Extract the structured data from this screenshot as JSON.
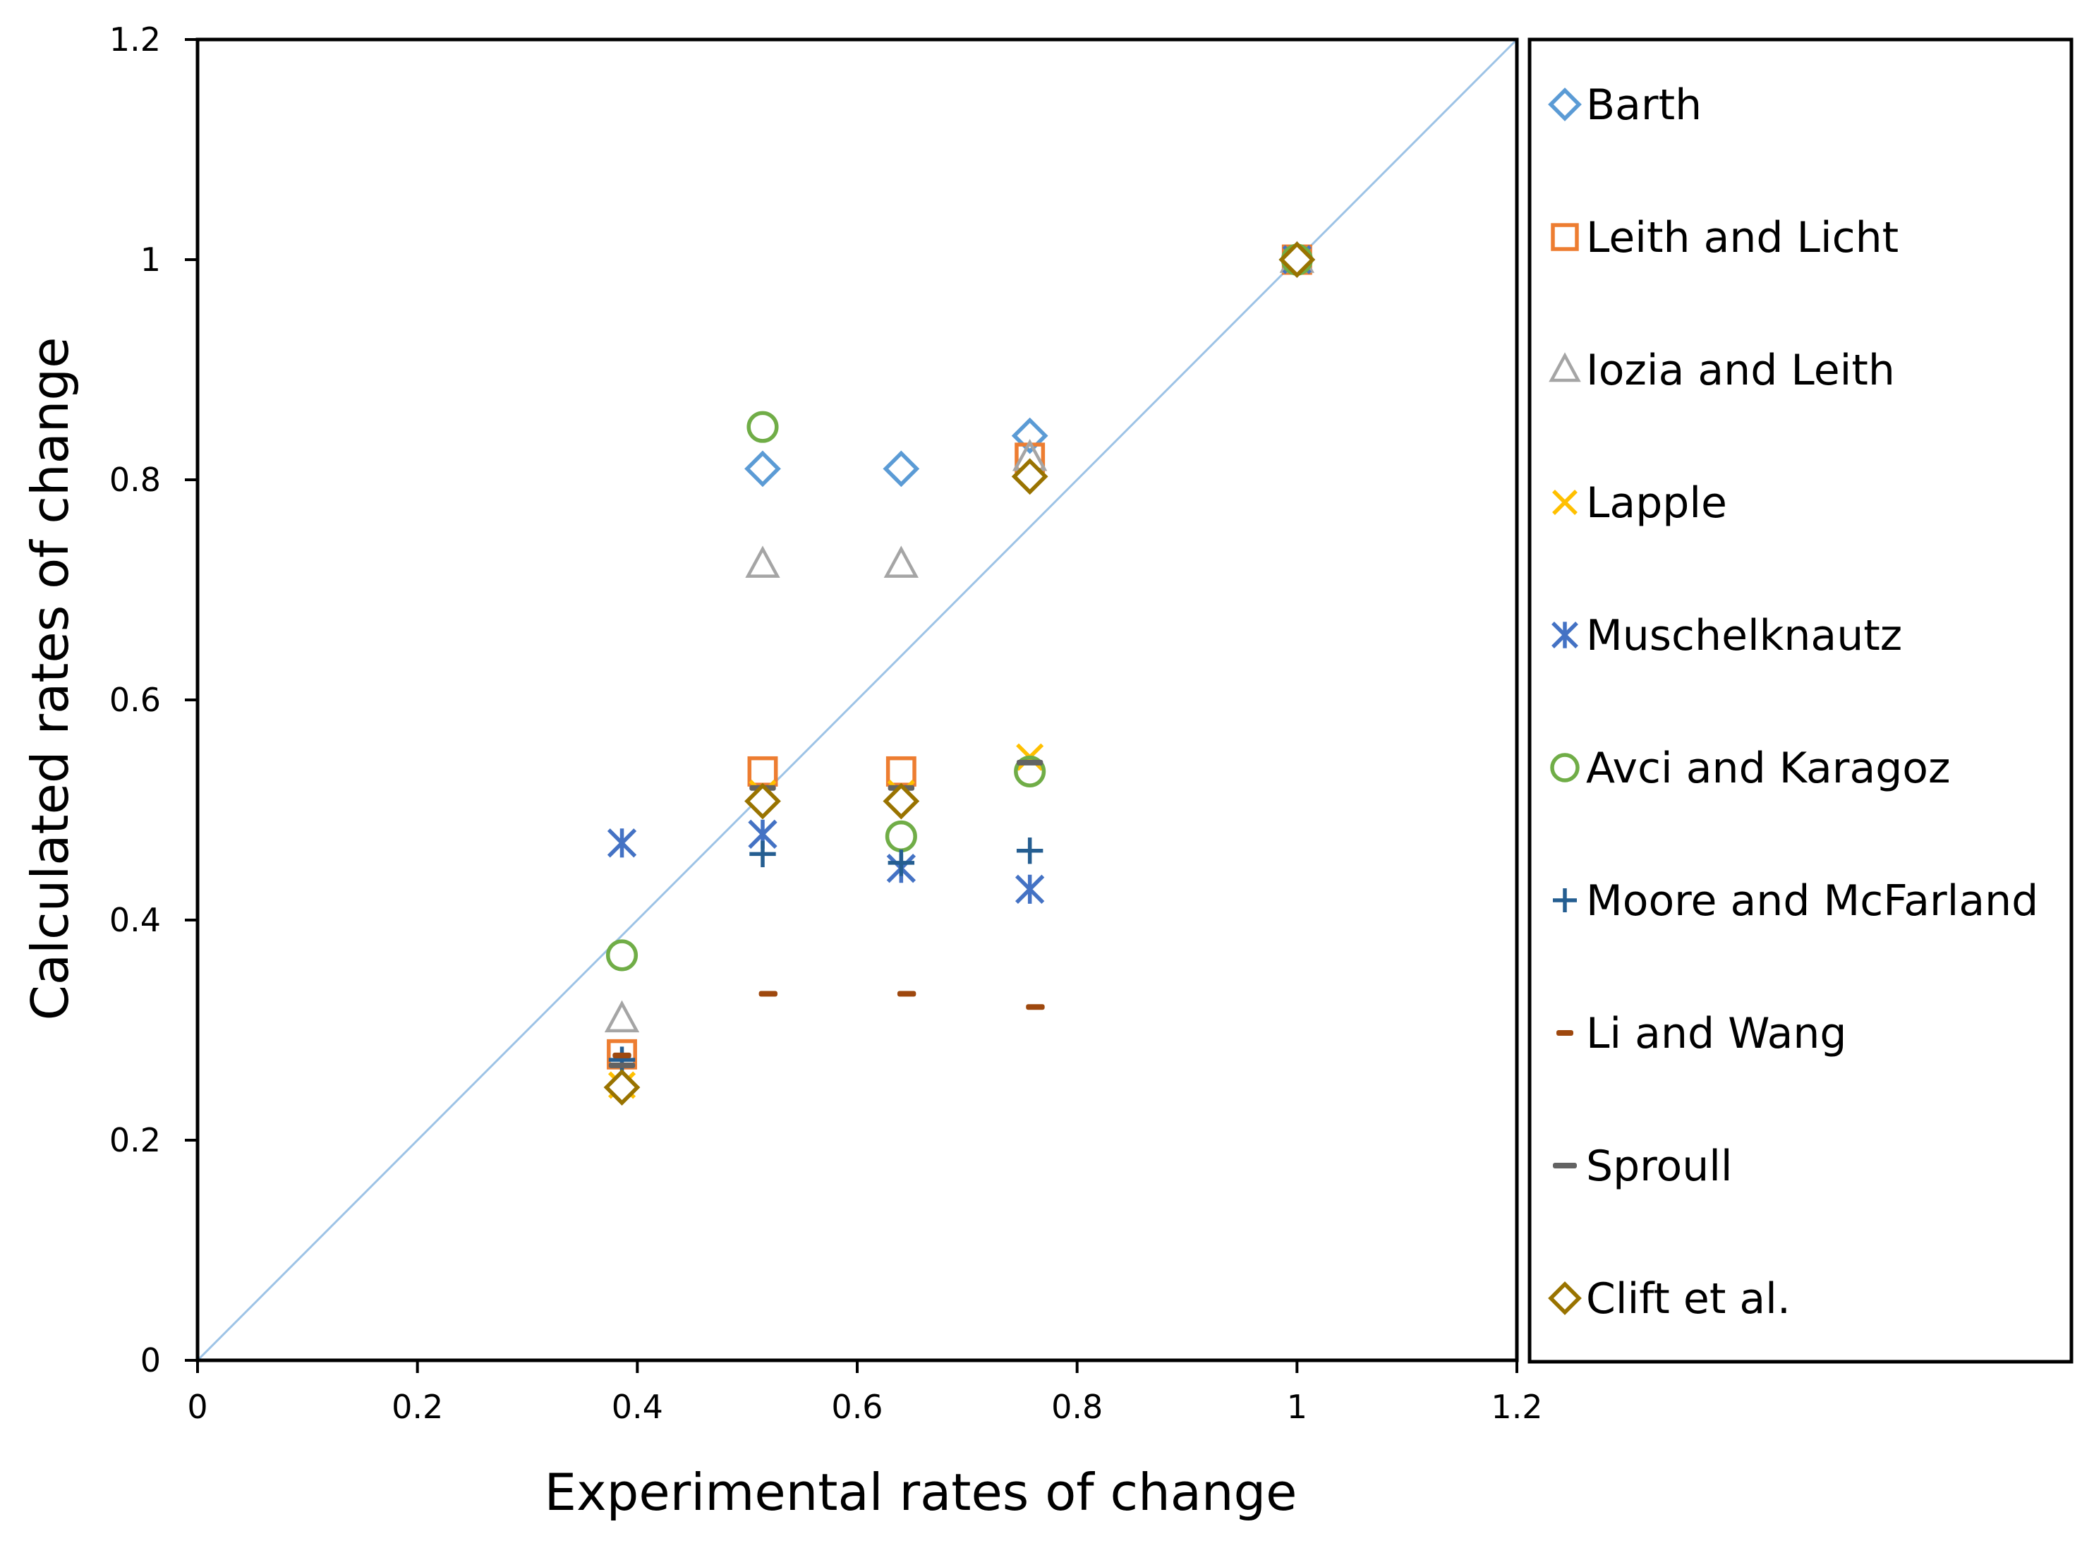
{
  "chart_data": {
    "type": "scatter",
    "title": "",
    "xlabel": "Experimental rates of change",
    "ylabel": "Calculated rates of change",
    "xlim": [
      0,
      1.2
    ],
    "ylim": [
      0,
      1.2
    ],
    "x_ticks": [
      "0",
      "0.2",
      "0.4",
      "0.6",
      "0.8",
      "1",
      "1.2"
    ],
    "y_ticks": [
      "0",
      "0.2",
      "0.4",
      "0.6",
      "0.8",
      "1",
      "1.2"
    ],
    "grid": false,
    "legend_position": "right",
    "reference_line": {
      "from": [
        0,
        0
      ],
      "to": [
        1.2,
        1.2
      ],
      "color": "#9DC3E6"
    },
    "series": [
      {
        "name": "Barth",
        "marker": "diamond-open",
        "color": "#5B9BD5",
        "points": [
          [
            0.514,
            0.81
          ],
          [
            0.64,
            0.81
          ],
          [
            0.757,
            0.84
          ],
          [
            1.0,
            1.0
          ]
        ]
      },
      {
        "name": "Leith and Licht",
        "marker": "square-open",
        "color": "#ED7D31",
        "points": [
          [
            0.386,
            0.278
          ],
          [
            0.514,
            0.535
          ],
          [
            0.64,
            0.535
          ],
          [
            0.757,
            0.82
          ],
          [
            1.0,
            1.0
          ]
        ]
      },
      {
        "name": "Iozia and Leith",
        "marker": "triangle-open",
        "color": "#A5A5A5",
        "points": [
          [
            0.386,
            0.31
          ],
          [
            0.514,
            0.723
          ],
          [
            0.64,
            0.723
          ],
          [
            0.757,
            0.82
          ],
          [
            1.0,
            1.0
          ]
        ]
      },
      {
        "name": "Lapple",
        "marker": "x",
        "color": "#FFC000",
        "points": [
          [
            0.386,
            0.25
          ],
          [
            0.514,
            0.515
          ],
          [
            0.64,
            0.515
          ],
          [
            0.757,
            0.548
          ],
          [
            1.0,
            1.0
          ]
        ]
      },
      {
        "name": "Muschelknautz",
        "marker": "asterisk",
        "color": "#4472C4",
        "points": [
          [
            0.386,
            0.47
          ],
          [
            0.514,
            0.478
          ],
          [
            0.64,
            0.447
          ],
          [
            0.757,
            0.428
          ],
          [
            1.0,
            1.0
          ]
        ]
      },
      {
        "name": "Avci and Karagoz",
        "marker": "circle-open",
        "color": "#70AD47",
        "points": [
          [
            0.386,
            0.368
          ],
          [
            0.514,
            0.848
          ],
          [
            0.64,
            0.476
          ],
          [
            0.757,
            0.535
          ],
          [
            1.0,
            1.0
          ]
        ]
      },
      {
        "name": "Moore and McFarland",
        "marker": "plus",
        "color": "#255E91",
        "points": [
          [
            0.386,
            0.273
          ],
          [
            0.514,
            0.46
          ],
          [
            0.64,
            0.452
          ],
          [
            0.757,
            0.463
          ],
          [
            1.0,
            1.0
          ]
        ]
      },
      {
        "name": "Li and Wang",
        "marker": "dash",
        "color": "#9E480E",
        "points": [
          [
            0.386,
            0.277
          ],
          [
            0.519,
            0.333
          ],
          [
            0.645,
            0.333
          ],
          [
            0.762,
            0.321
          ],
          [
            1.0,
            1.0
          ]
        ]
      },
      {
        "name": "Sproull",
        "marker": "dash-wide",
        "color": "#636363",
        "points": [
          [
            0.386,
            0.268
          ],
          [
            0.514,
            0.52
          ],
          [
            0.64,
            0.52
          ],
          [
            0.757,
            0.543
          ],
          [
            1.0,
            1.0
          ]
        ]
      },
      {
        "name": "Clift et al.",
        "marker": "diamond-open",
        "color": "#997300",
        "points": [
          [
            0.386,
            0.248
          ],
          [
            0.514,
            0.508
          ],
          [
            0.64,
            0.508
          ],
          [
            0.757,
            0.803
          ],
          [
            1.0,
            1.0
          ]
        ]
      }
    ]
  }
}
